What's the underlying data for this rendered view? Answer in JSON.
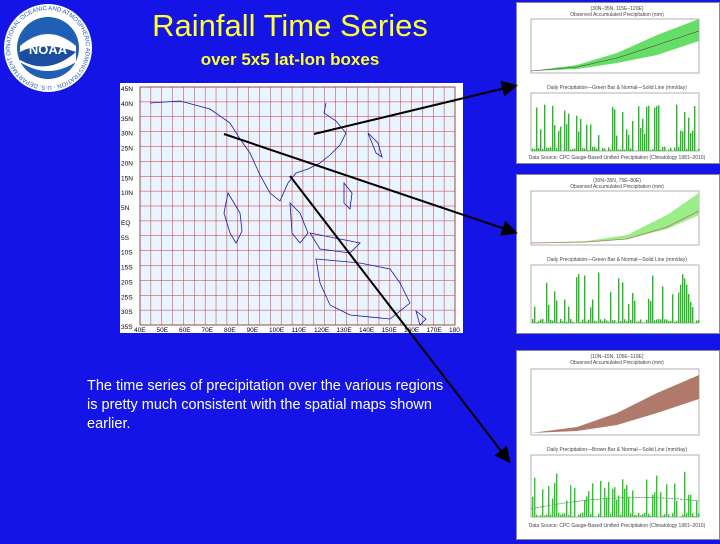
{
  "slide": {
    "title": "Rainfall Time Series",
    "subtitle": "over 5x5 lat-lon boxes",
    "body": "The time series of  precipitation over the various regions is pretty much consistent with the spatial maps shown earlier."
  },
  "logo": {
    "text": "NOAA",
    "ring_text": "NATIONAL OCEANIC AND ATMOSPHERIC ADMINISTRATION · U.S. DEPARTMENT OF COMMERCE ·"
  },
  "map": {
    "lat_labels": [
      "45N",
      "40N",
      "35N",
      "30N",
      "25N",
      "20N",
      "15N",
      "10N",
      "5N",
      "EQ",
      "5S",
      "10S",
      "15S",
      "20S",
      "25S",
      "30S",
      "35S"
    ],
    "lon_labels": [
      "40E",
      "50E",
      "60E",
      "70E",
      "80E",
      "90E",
      "100E",
      "110E",
      "120E",
      "130E",
      "140E",
      "150E",
      "160E",
      "170E",
      "180"
    ]
  },
  "panels": [
    {
      "heading": "(30N–35N, 115E–120E)",
      "top_title": "Observed Accumulated Precipitation (mm)",
      "bottom_title": "Daily Precipitation—Green Bar & Normal—Solid Line (mm/day)",
      "source": "Data Source: CPC Gauge-Based Unified Precipitation (Climatology 1981–2010)",
      "color": "#66dd66"
    },
    {
      "heading": "(30N–35N, 75E–80E)",
      "top_title": "Observed Accumulated Precipitation (mm)",
      "bottom_title": "Daily Precipitation—Green Bar & Normal—Solid Line (mm/day)",
      "source": "Data Source: CPC Gauge-Based Unified Precipitation (Climatology 1981–2010)",
      "color": "#99ee88"
    },
    {
      "heading": "(10N–15N, 105E–110E)",
      "top_title": "Observed Accumulated Precipitation (mm)",
      "bottom_title": "Daily Precipitation—Brown Bar & Normal—Solid Line (mm/day)",
      "source": "Data Source: CPC Gauge-Based Unified Precipitation (Climatology 1981–2010)",
      "color": "#b07a6a"
    }
  ]
}
